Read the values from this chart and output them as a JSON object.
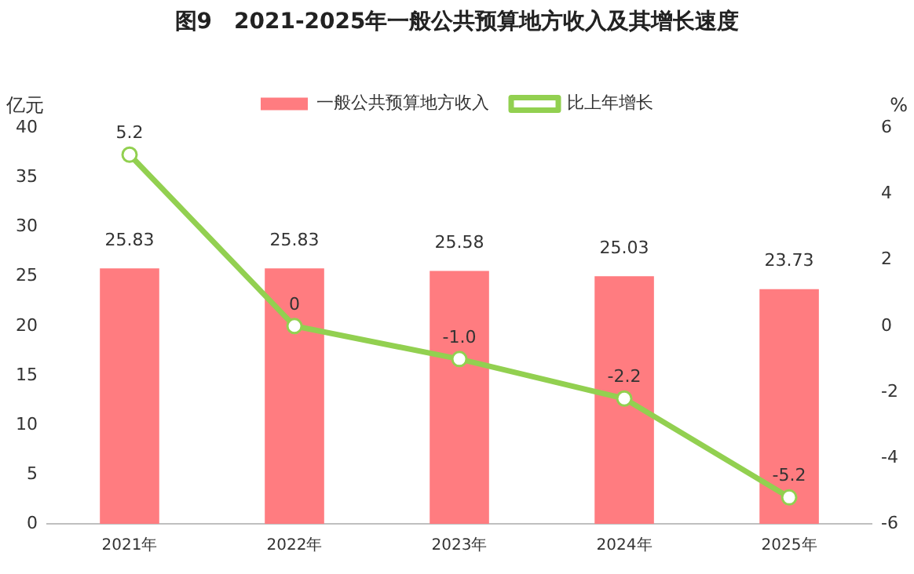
{
  "chart_data": {
    "type": "bar",
    "title": "图9　2021-2025年一般公共预算地方收入及其增长速度",
    "ylabel": "亿元",
    "y2label": "%",
    "categories": [
      "2021年",
      "2022年",
      "2023年",
      "2024年",
      "2025年"
    ],
    "series": [
      {
        "name": "一般公共预算地方收入",
        "color": "#ff7c80",
        "values": [
          25.83,
          25.83,
          25.58,
          25.03,
          23.73
        ],
        "value_labels": [
          "25.83",
          "25.83",
          "25.58",
          "25.03",
          "23.73"
        ]
      },
      {
        "name": "比上年增长",
        "type": "line",
        "axis": "y2",
        "color": "#92d050",
        "marker": "circle",
        "values": [
          5.2,
          0,
          -1.0,
          -2.2,
          -5.2
        ],
        "value_labels": [
          "5.2",
          "0",
          "-1.0",
          "-2.2",
          "-5.2"
        ]
      }
    ],
    "ylim": [
      0,
      40
    ],
    "yticks": [
      0,
      5,
      10,
      15,
      20,
      25,
      30,
      35,
      40
    ],
    "y2lim": [
      -6,
      6
    ],
    "y2ticks": [
      -6,
      -4,
      -2,
      0,
      2,
      4,
      6
    ],
    "grid": false,
    "legend": "top"
  }
}
